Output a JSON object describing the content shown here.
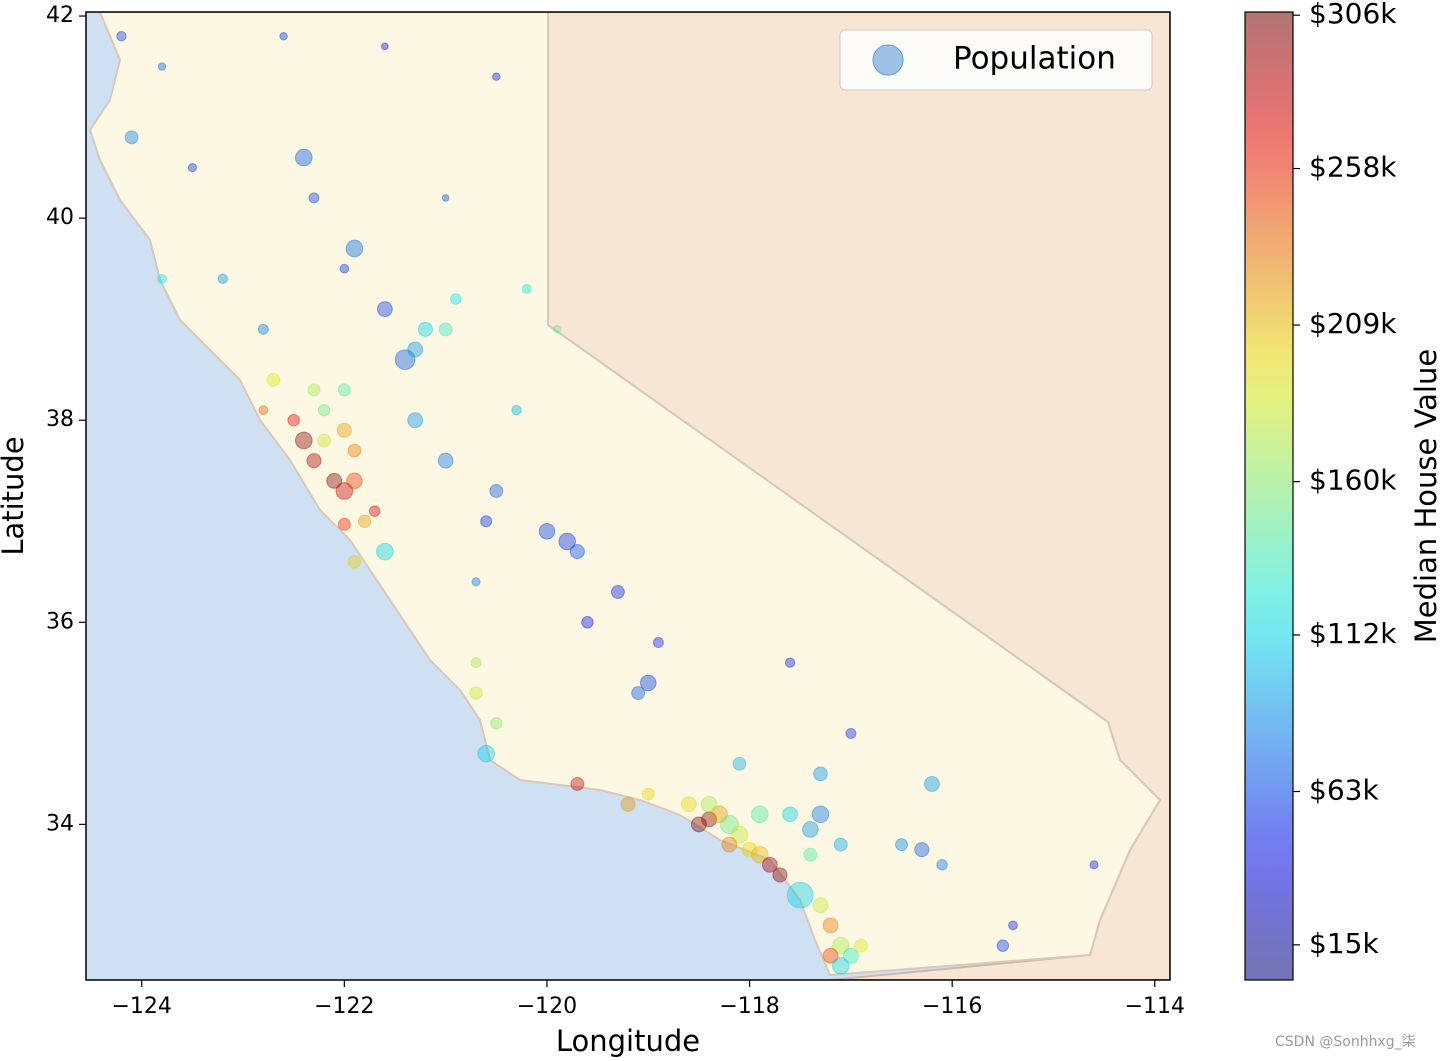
{
  "chart_data": {
    "type": "scatter",
    "xlabel": "Longitude",
    "ylabel": "Latitude",
    "xlim": [
      -124.55,
      -113.85
    ],
    "ylim": [
      32.46,
      42.04
    ],
    "xticks": [
      {
        "value": -124,
        "label": "−124"
      },
      {
        "value": -122,
        "label": "−122"
      },
      {
        "value": -120,
        "label": "−120"
      },
      {
        "value": -118,
        "label": "−118"
      },
      {
        "value": -116,
        "label": "−116"
      },
      {
        "value": -114,
        "label": "−114"
      }
    ],
    "yticks": [
      34,
      36,
      38,
      40,
      42
    ],
    "colormap": "jet",
    "alpha": 0.4,
    "legend": "upper right",
    "legend_marker_color": "#5b9bd5",
    "colorbar": {
      "label": "Median House Value",
      "clim": [
        4000,
        307000
      ],
      "ticks": [
        {
          "value": 15000,
          "label": "$15k"
        },
        {
          "value": 63000,
          "label": "$63k"
        },
        {
          "value": 112000,
          "label": "$112k"
        },
        {
          "value": 160000,
          "label": "$160k"
        },
        {
          "value": 209000,
          "label": "$209k"
        },
        {
          "value": 258000,
          "label": "$258k"
        },
        {
          "value": 306000,
          "label": "$306k"
        }
      ]
    },
    "series": [
      {
        "name": "Population",
        "x": [
          -124.2,
          -123.8,
          -124.1,
          -123.5,
          -122.4,
          -122.3,
          -121.9,
          -121.6,
          -122.0,
          -121.0,
          -120.5,
          -121.6,
          -122.6,
          -123.2,
          -123.8,
          -122.8,
          -121.4,
          -121.3,
          -121.2,
          -121.0,
          -120.9,
          -120.3,
          -120.2,
          -119.9,
          -122.4,
          -122.3,
          -122.1,
          -122.0,
          -121.9,
          -122.2,
          -122.0,
          -122.5,
          -122.7,
          -122.3,
          -122.2,
          -122.0,
          -121.9,
          -121.8,
          -121.9,
          -121.6,
          -122.0,
          -121.7,
          -122.8,
          -121.3,
          -121.0,
          -120.5,
          -120.0,
          -119.8,
          -119.7,
          -119.3,
          -119.0,
          -119.1,
          -119.6,
          -120.6,
          -118.9,
          -120.7,
          -117.6,
          -118.1,
          -117.3,
          -116.2,
          -117.0,
          -116.5,
          -115.5,
          -115.4,
          -114.6,
          -120.6,
          -120.7,
          -120.5,
          -120.7,
          -119.7,
          -119.2,
          -119.0,
          -118.5,
          -118.4,
          -118.3,
          -118.2,
          -118.1,
          -118.2,
          -118.0,
          -117.9,
          -117.8,
          -117.7,
          -117.9,
          -117.6,
          -117.3,
          -117.4,
          -117.1,
          -118.6,
          -118.4,
          -117.3,
          -117.2,
          -117.1,
          -117.2,
          -117.0,
          -117.1,
          -117.5,
          -117.4,
          -116.3,
          -116.1,
          -116.9
        ],
        "y": [
          41.8,
          41.5,
          40.8,
          40.5,
          40.6,
          40.2,
          39.7,
          39.1,
          39.5,
          40.2,
          41.4,
          41.7,
          41.8,
          39.4,
          39.4,
          38.9,
          38.6,
          38.7,
          38.9,
          38.9,
          39.2,
          38.1,
          39.3,
          38.9,
          37.8,
          37.6,
          37.4,
          37.3,
          37.4,
          37.8,
          37.9,
          38.0,
          38.4,
          38.3,
          38.1,
          38.3,
          37.7,
          37.0,
          36.6,
          36.7,
          36.97,
          37.1,
          38.1,
          38.0,
          37.6,
          37.3,
          36.9,
          36.8,
          36.7,
          36.3,
          35.4,
          35.3,
          36.0,
          37.0,
          35.8,
          36.4,
          35.6,
          34.6,
          34.5,
          34.4,
          34.9,
          33.8,
          32.8,
          33.0,
          33.6,
          34.7,
          35.3,
          35.0,
          35.6,
          34.4,
          34.2,
          34.3,
          34.0,
          34.05,
          34.1,
          34.0,
          33.9,
          33.8,
          33.75,
          33.7,
          33.6,
          33.5,
          34.1,
          34.1,
          34.1,
          33.95,
          33.8,
          34.2,
          34.2,
          33.2,
          33.0,
          32.8,
          32.7,
          32.7,
          32.6,
          33.3,
          33.7,
          33.75,
          33.6,
          32.8
        ],
        "sizes": [
          800,
          500,
          1500,
          600,
          2500,
          900,
          2500,
          2000,
          700,
          400,
          500,
          400,
          500,
          800,
          700,
          900,
          3500,
          2000,
          1800,
          1500,
          1000,
          800,
          700,
          500,
          2500,
          1800,
          2000,
          2500,
          2200,
          1500,
          1800,
          1200,
          1500,
          1300,
          1200,
          1300,
          1500,
          1400,
          1500,
          2500,
          1300,
          1000,
          700,
          2000,
          2000,
          1500,
          2200,
          2500,
          1800,
          1500,
          2200,
          1500,
          1200,
          1100,
          900,
          600,
          800,
          1500,
          1700,
          2000,
          900,
          1300,
          1200,
          700,
          600,
          2500,
          1400,
          1200,
          900,
          1500,
          1800,
          1300,
          2000,
          2000,
          2500,
          3000,
          2500,
          2000,
          2000,
          2500,
          2000,
          1800,
          2500,
          2000,
          2500,
          2200,
          1500,
          2000,
          2200,
          2000,
          2000,
          2500,
          2000,
          2000,
          2500,
          6000,
          1500,
          1800,
          1000,
          1500
        ],
        "color_values": [
          60000,
          70000,
          85000,
          55000,
          70000,
          60000,
          75000,
          60000,
          55000,
          65000,
          50000,
          45000,
          55000,
          90000,
          120000,
          80000,
          70000,
          90000,
          110000,
          130000,
          115000,
          100000,
          120000,
          150000,
          300000,
          290000,
          305000,
          280000,
          250000,
          180000,
          220000,
          270000,
          190000,
          170000,
          150000,
          140000,
          230000,
          220000,
          200000,
          110000,
          260000,
          280000,
          240000,
          90000,
          80000,
          70000,
          60000,
          55000,
          65000,
          50000,
          60000,
          70000,
          45000,
          55000,
          50000,
          80000,
          50000,
          100000,
          90000,
          90000,
          55000,
          85000,
          60000,
          50000,
          50000,
          110000,
          180000,
          160000,
          170000,
          280000,
          220000,
          200000,
          305000,
          300000,
          220000,
          150000,
          180000,
          230000,
          200000,
          210000,
          290000,
          300000,
          140000,
          110000,
          80000,
          90000,
          95000,
          200000,
          170000,
          180000,
          230000,
          170000,
          250000,
          130000,
          110000,
          110000,
          140000,
          70000,
          80000,
          190000
        ]
      }
    ]
  },
  "watermark": "CSDN @Sonhhxg_柒"
}
